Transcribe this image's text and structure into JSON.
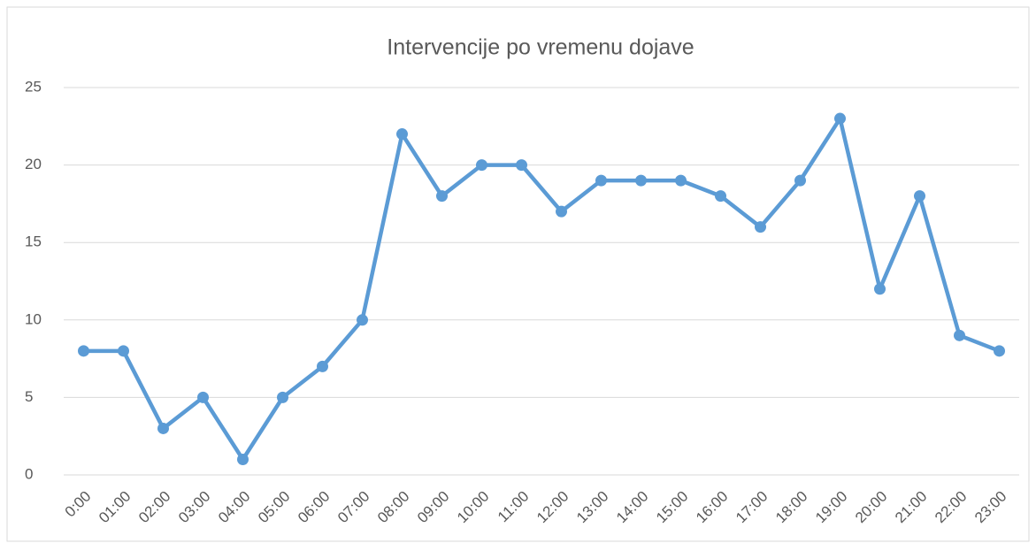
{
  "chart_data": {
    "type": "line",
    "title": "Intervencije po vremenu dojave",
    "categories": [
      "0:00",
      "01:00",
      "02:00",
      "03:00",
      "04:00",
      "05:00",
      "06:00",
      "07:00",
      "08:00",
      "09:00",
      "10:00",
      "11:00",
      "12:00",
      "13:00",
      "14:00",
      "15:00",
      "16:00",
      "17:00",
      "18:00",
      "19:00",
      "20:00",
      "21:00",
      "22:00",
      "23:00"
    ],
    "series": [
      {
        "name": "Intervencije",
        "color": "#5b9bd5",
        "values": [
          8,
          8,
          3,
          5,
          1,
          5,
          7,
          10,
          22,
          18,
          20,
          20,
          17,
          19,
          19,
          19,
          18,
          16,
          19,
          23,
          12,
          18,
          9,
          8
        ]
      }
    ],
    "ylim": [
      0,
      25
    ],
    "yticks": [
      0,
      5,
      10,
      15,
      20,
      25
    ],
    "grid": true
  }
}
